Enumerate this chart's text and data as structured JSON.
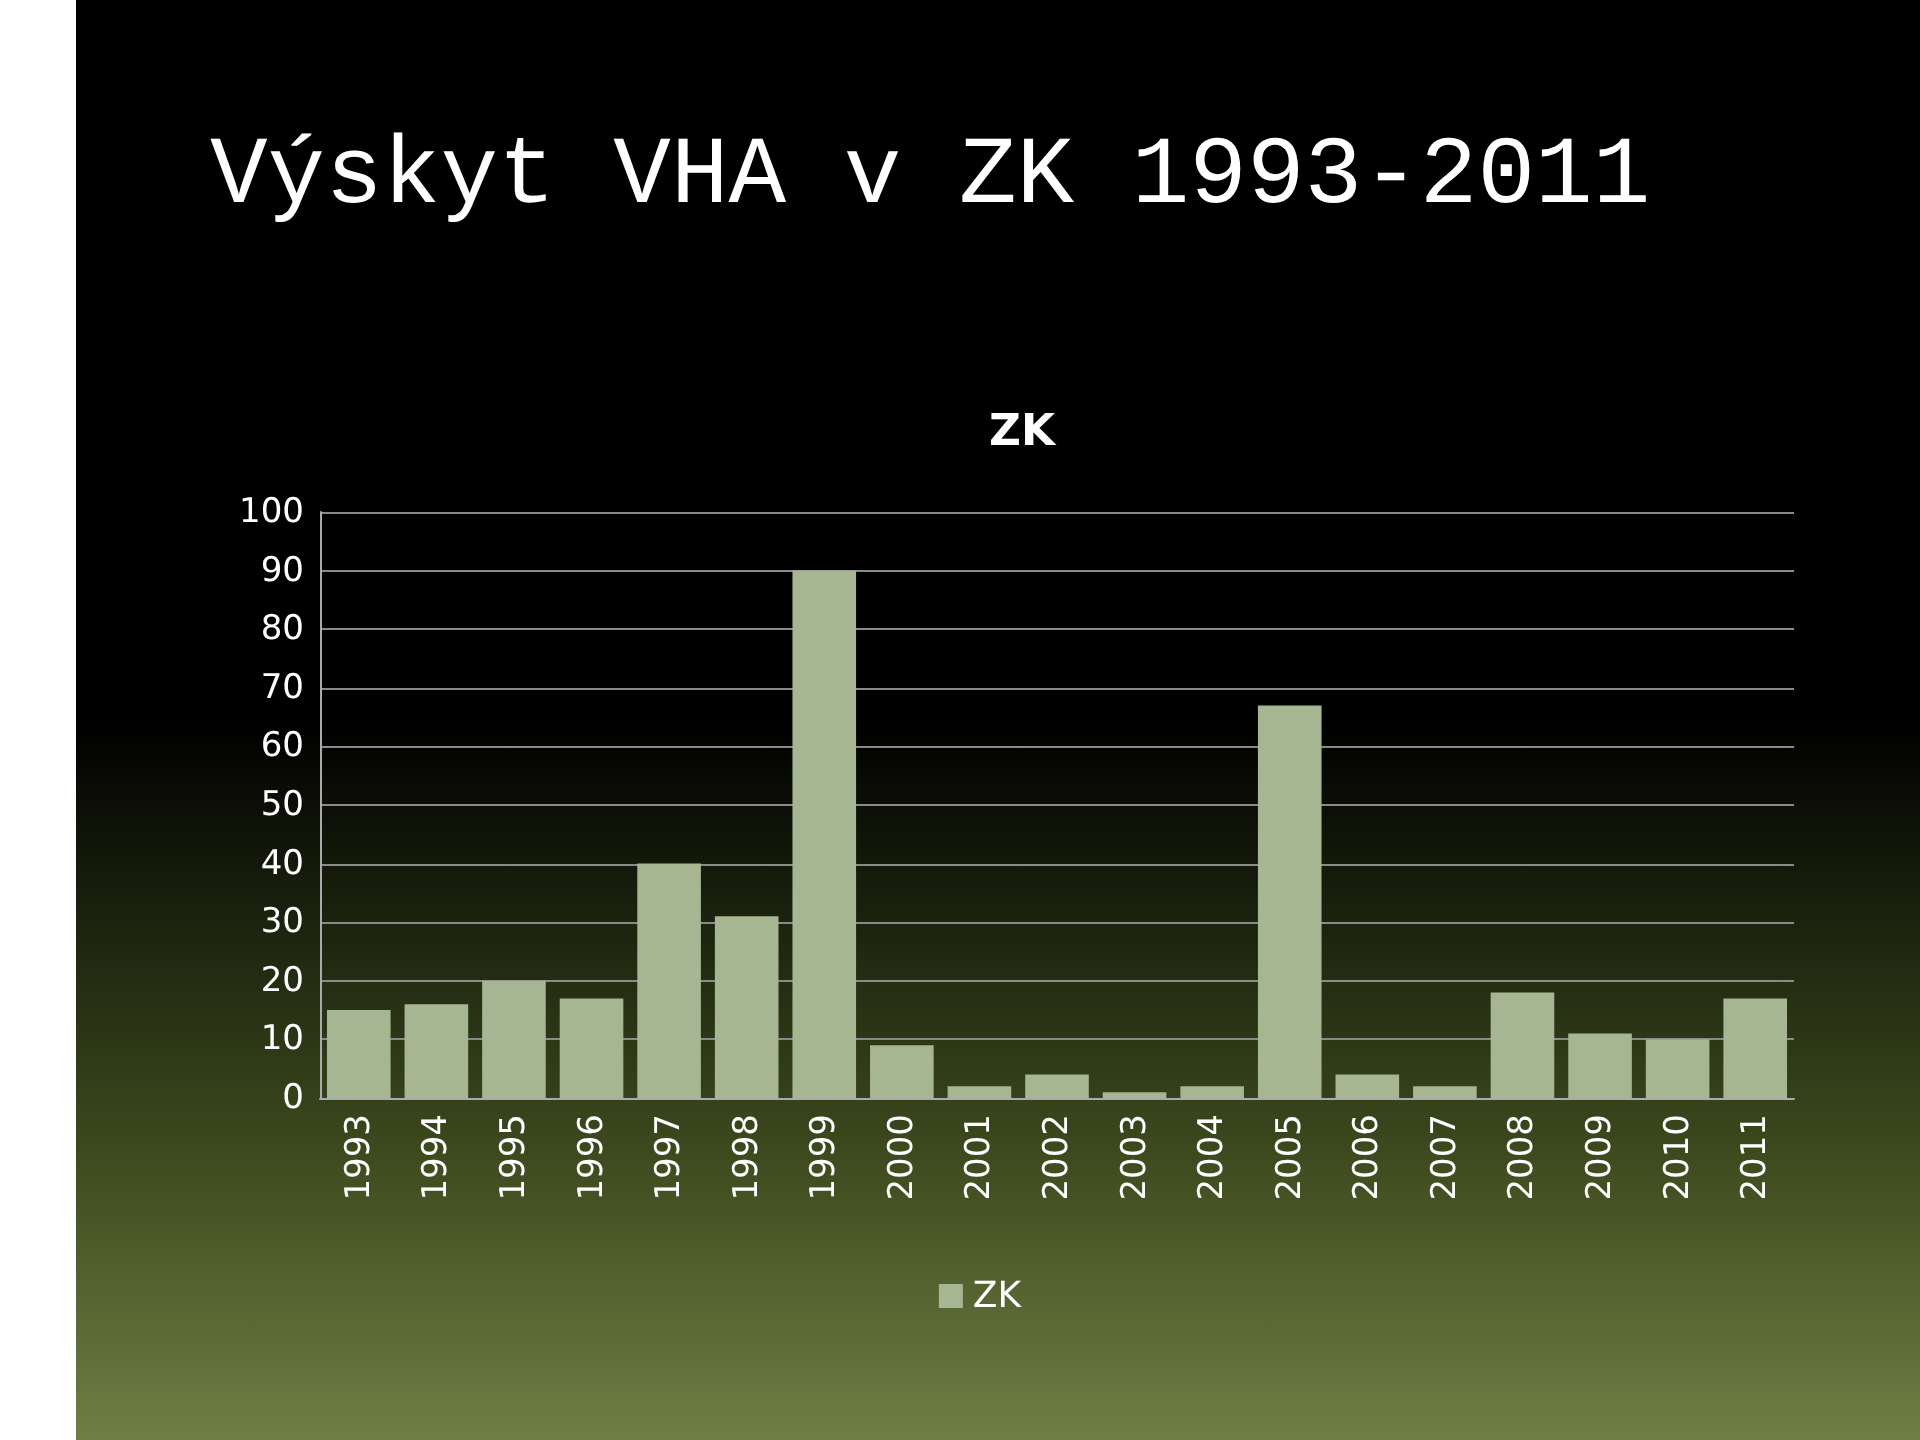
{
  "chart_data": {
    "type": "bar",
    "title": "Výskyt VHA v ZK 1993-2011",
    "subtitle": "ZK",
    "categories": [
      "1993",
      "1994",
      "1995",
      "1996",
      "1997",
      "1998",
      "1999",
      "2000",
      "2001",
      "2002",
      "2003",
      "2004",
      "2005",
      "2006",
      "2007",
      "2008",
      "2009",
      "2010",
      "2011"
    ],
    "series": [
      {
        "name": "ZK",
        "color": "#a6b592",
        "values": [
          15,
          16,
          20,
          17,
          40,
          31,
          90,
          9,
          2,
          4,
          1,
          2,
          67,
          4,
          2,
          18,
          11,
          10,
          17
        ]
      }
    ],
    "ylim": [
      0,
      100
    ],
    "yticks": [
      0,
      10,
      20,
      30,
      40,
      50,
      60,
      70,
      80,
      90,
      100
    ],
    "grid": "y",
    "legend": "bottom"
  }
}
